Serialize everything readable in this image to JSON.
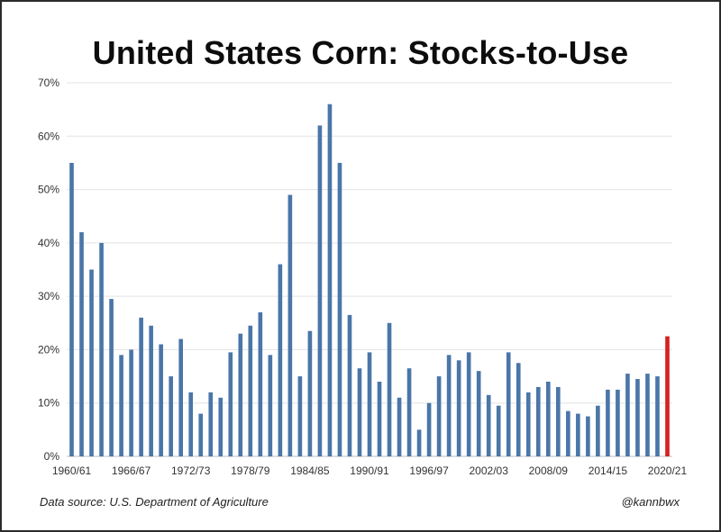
{
  "chart_data": {
    "type": "bar",
    "title": "United States Corn: Stocks-to-Use",
    "xlabel": "",
    "ylabel": "",
    "ylim": [
      0,
      70
    ],
    "y_ticks": [
      "0%",
      "10%",
      "20%",
      "30%",
      "40%",
      "50%",
      "60%",
      "70%"
    ],
    "x_tick_labels": [
      "1960/61",
      "1966/67",
      "1972/73",
      "1978/79",
      "1984/85",
      "1990/91",
      "1996/97",
      "2002/03",
      "2008/09",
      "2014/15",
      "2020/21"
    ],
    "grid": true,
    "legend": "none",
    "bar_color": "#4a76a8",
    "highlight_color": "#d62020",
    "highlight_category": "2020/21",
    "categories": [
      "1960/61",
      "1961/62",
      "1962/63",
      "1963/64",
      "1964/65",
      "1965/66",
      "1966/67",
      "1967/68",
      "1968/69",
      "1969/70",
      "1970/71",
      "1971/72",
      "1972/73",
      "1973/74",
      "1974/75",
      "1975/76",
      "1976/77",
      "1977/78",
      "1978/79",
      "1979/80",
      "1980/81",
      "1981/82",
      "1982/83",
      "1983/84",
      "1984/85",
      "1985/86",
      "1986/87",
      "1987/88",
      "1988/89",
      "1989/90",
      "1990/91",
      "1991/92",
      "1992/93",
      "1993/94",
      "1994/95",
      "1995/96",
      "1996/97",
      "1997/98",
      "1998/99",
      "1999/00",
      "2000/01",
      "2001/02",
      "2002/03",
      "2003/04",
      "2004/05",
      "2005/06",
      "2006/07",
      "2007/08",
      "2008/09",
      "2009/10",
      "2010/11",
      "2011/12",
      "2012/13",
      "2013/14",
      "2014/15",
      "2015/16",
      "2016/17",
      "2017/18",
      "2018/19",
      "2019/20",
      "2020/21"
    ],
    "values": [
      55,
      42,
      35,
      40,
      29.5,
      19,
      20,
      26,
      24.5,
      21,
      15,
      22,
      12,
      8,
      12,
      11,
      19.5,
      23,
      24.5,
      27,
      19,
      36,
      49,
      15,
      23.5,
      62,
      66,
      55,
      26.5,
      16.5,
      19.5,
      14,
      25,
      11,
      16.5,
      5,
      10,
      15,
      19,
      18,
      19.5,
      16,
      11.5,
      9.5,
      19.5,
      17.5,
      12,
      13,
      14,
      13,
      8.5,
      8,
      7.5,
      9.5,
      12.5,
      12.5,
      15.5,
      14.5,
      15.5,
      15,
      22.5
    ]
  },
  "footer": {
    "source": "Data source: U.S. Department of Agriculture",
    "credit": "@kannbwx"
  }
}
